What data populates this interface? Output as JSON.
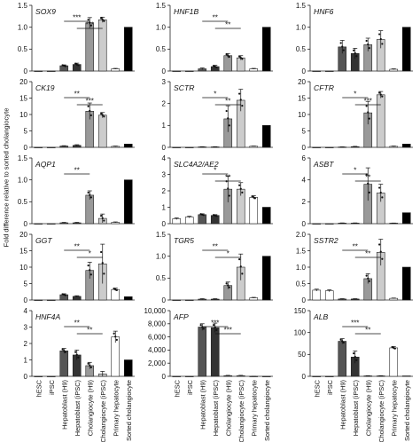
{
  "figure": {
    "y_axis_label": "Fold difference relative to sorted cholangiocyte"
  },
  "chart_data": [
    {
      "type": "bar",
      "title": "SOX9",
      "categories": [
        "hESC",
        "iPSC",
        "Hepatoblast (H9)",
        "Hepatoblast (iPSC)",
        "Cholangiocyte (H9)",
        "Cholangiocyte (iPSC)",
        "Primary hepatocyte",
        "Sorted cholangiocyte"
      ],
      "values": [
        0.0,
        0.0,
        0.12,
        0.15,
        1.1,
        1.17,
        0.05,
        1.0
      ],
      "errors": [
        0,
        0,
        0.02,
        0.03,
        0.12,
        0.06,
        0.01,
        0.0
      ],
      "ylim": [
        0,
        1.5
      ],
      "yticks": [
        0,
        0.5,
        1.0,
        1.5
      ],
      "annotations": [
        {
          "from": 2,
          "to": 4,
          "text": "***"
        },
        {
          "from": 3,
          "to": 5,
          "text": "***"
        }
      ]
    },
    {
      "type": "bar",
      "title": "HNF1B",
      "categories": [
        "hESC",
        "iPSC",
        "Hepatoblast (H9)",
        "Hepatoblast (iPSC)",
        "Cholangiocyte (H9)",
        "Cholangiocyte (iPSC)",
        "Primary hepatocyte",
        "Sorted cholangiocyte"
      ],
      "values": [
        0.0,
        0.0,
        0.05,
        0.1,
        0.35,
        0.3,
        0.05,
        1.0
      ],
      "errors": [
        0,
        0,
        0.02,
        0.03,
        0.05,
        0.05,
        0.01,
        0.0
      ],
      "ylim": [
        0,
        1.5
      ],
      "yticks": [
        0,
        0.5,
        1.0,
        1.5
      ],
      "annotations": [
        {
          "from": 2,
          "to": 4,
          "text": "**"
        },
        {
          "from": 3,
          "to": 5,
          "text": "**"
        }
      ]
    },
    {
      "type": "bar",
      "title": "HNF6",
      "categories": [
        "hESC",
        "iPSC",
        "Hepatoblast (H9)",
        "Hepatoblast (iPSC)",
        "Cholangiocyte (H9)",
        "Cholangiocyte (iPSC)",
        "Primary hepatocyte",
        "Sorted cholangiocyte"
      ],
      "values": [
        0.0,
        0.0,
        0.55,
        0.4,
        0.6,
        0.72,
        0.04,
        1.0
      ],
      "errors": [
        0,
        0,
        0.15,
        0.12,
        0.15,
        0.2,
        0.01,
        0.0
      ],
      "ylim": [
        0,
        1.5
      ],
      "yticks": [
        0,
        0.5,
        1.0,
        1.5
      ],
      "annotations": []
    },
    {
      "type": "bar",
      "title": "CK19",
      "categories": [
        "hESC",
        "iPSC",
        "Hepatoblast (H9)",
        "Hepatoblast (iPSC)",
        "Cholangiocyte (H9)",
        "Cholangiocyte (iPSC)",
        "Primary hepatocyte",
        "Sorted cholangiocyte"
      ],
      "values": [
        0.0,
        0.0,
        0.4,
        0.6,
        11.0,
        9.8,
        0.3,
        1.0
      ],
      "errors": [
        0,
        0,
        0.1,
        0.2,
        2.5,
        0.8,
        0.1,
        0.0
      ],
      "ylim": [
        0,
        20
      ],
      "yticks": [
        0,
        5,
        10,
        15,
        20
      ],
      "annotations": [
        {
          "from": 2,
          "to": 4,
          "text": "**"
        },
        {
          "from": 3,
          "to": 5,
          "text": "***"
        }
      ]
    },
    {
      "type": "bar",
      "title": "SCTR",
      "categories": [
        "hESC",
        "iPSC",
        "Hepatoblast (H9)",
        "Hepatoblast (iPSC)",
        "Cholangiocyte (H9)",
        "Cholangiocyte (iPSC)",
        "Primary hepatocyte",
        "Sorted cholangiocyte"
      ],
      "values": [
        0.0,
        0.0,
        0.02,
        0.02,
        1.3,
        2.15,
        0.05,
        1.0
      ],
      "errors": [
        0,
        0,
        0.01,
        0.01,
        0.6,
        0.5,
        0.01,
        0.0
      ],
      "ylim": [
        0,
        3
      ],
      "yticks": [
        0,
        1,
        2,
        3
      ],
      "annotations": [
        {
          "from": 2,
          "to": 4,
          "text": "*"
        },
        {
          "from": 3,
          "to": 5,
          "text": "**"
        }
      ]
    },
    {
      "type": "bar",
      "title": "CFTR",
      "categories": [
        "hESC",
        "iPSC",
        "Hepatoblast (H9)",
        "Hepatoblast (iPSC)",
        "Cholangiocyte (H9)",
        "Cholangiocyte (iPSC)",
        "Primary hepatocyte",
        "Sorted cholangiocyte"
      ],
      "values": [
        0.0,
        0.0,
        0.1,
        0.2,
        10.5,
        16.0,
        0.3,
        1.0
      ],
      "errors": [
        0,
        0,
        0.05,
        0.1,
        3.5,
        1.0,
        0.1,
        0.0
      ],
      "ylim": [
        0,
        20
      ],
      "yticks": [
        0,
        5,
        10,
        15,
        20
      ],
      "annotations": [
        {
          "from": 2,
          "to": 4,
          "text": "*"
        },
        {
          "from": 3,
          "to": 5,
          "text": "***"
        }
      ]
    },
    {
      "type": "bar",
      "title": "AQP1",
      "categories": [
        "hESC",
        "iPSC",
        "Hepatoblast (H9)",
        "Hepatoblast (iPSC)",
        "Cholangiocyte (H9)",
        "Cholangiocyte (iPSC)",
        "Primary hepatocyte",
        "Sorted cholangiocyte"
      ],
      "values": [
        0.0,
        0.0,
        0.02,
        0.02,
        0.65,
        0.12,
        0.03,
        1.0
      ],
      "errors": [
        0,
        0,
        0.01,
        0.01,
        0.1,
        0.1,
        0.01,
        0.0
      ],
      "ylim": [
        0,
        1.5
      ],
      "yticks": [
        0,
        0.5,
        1.0,
        1.5
      ],
      "annotations": [
        {
          "from": 2,
          "to": 4,
          "text": "**"
        }
      ]
    },
    {
      "type": "bar",
      "title": "SLC4A2/AE2",
      "categories": [
        "hESC",
        "iPSC",
        "Hepatoblast (H9)",
        "Hepatoblast (iPSC)",
        "Cholangiocyte (H9)",
        "Cholangiocyte (iPSC)",
        "Primary hepatocyte",
        "Sorted cholangiocyte"
      ],
      "values": [
        0.3,
        0.4,
        0.55,
        0.5,
        2.1,
        2.1,
        1.6,
        1.0
      ],
      "errors": [
        0.05,
        0.05,
        0.05,
        0.05,
        0.8,
        0.4,
        0.1,
        0.0
      ],
      "ylim": [
        0,
        4
      ],
      "yticks": [
        0,
        1,
        2,
        3,
        4
      ],
      "annotations": [
        {
          "from": 2,
          "to": 4,
          "text": "*"
        },
        {
          "from": 3,
          "to": 5,
          "text": "**"
        }
      ]
    },
    {
      "type": "bar",
      "title": "ASBT",
      "categories": [
        "hESC",
        "iPSC",
        "Hepatoblast (H9)",
        "Hepatoblast (iPSC)",
        "Cholangiocyte (H9)",
        "Cholangiocyte (iPSC)",
        "Primary hepatocyte",
        "Sorted cholangiocyte"
      ],
      "values": [
        0.0,
        0.0,
        0.05,
        0.05,
        3.6,
        2.8,
        0.05,
        1.0
      ],
      "errors": [
        0,
        0,
        0.02,
        0.02,
        1.5,
        0.8,
        0.01,
        0.0
      ],
      "ylim": [
        0,
        6
      ],
      "yticks": [
        0,
        2,
        4,
        6
      ],
      "annotations": [
        {
          "from": 2,
          "to": 4,
          "text": "*"
        },
        {
          "from": 3,
          "to": 5,
          "text": "**"
        }
      ]
    },
    {
      "type": "bar",
      "title": "GGT",
      "categories": [
        "hESC",
        "iPSC",
        "Hepatoblast (H9)",
        "Hepatoblast (iPSC)",
        "Cholangiocyte (H9)",
        "Cholangiocyte (iPSC)",
        "Primary hepatocyte",
        "Sorted cholangiocyte"
      ],
      "values": [
        0.0,
        0.0,
        1.6,
        1.1,
        9.0,
        11.0,
        3.2,
        1.0
      ],
      "errors": [
        0,
        0,
        0.3,
        0.2,
        2.5,
        6.0,
        0.4,
        0.0
      ],
      "ylim": [
        0,
        20
      ],
      "yticks": [
        0,
        5,
        10,
        15,
        20
      ],
      "annotations": [
        {
          "from": 2,
          "to": 4,
          "text": "**"
        },
        {
          "from": 3,
          "to": 5,
          "text": "*"
        }
      ]
    },
    {
      "type": "bar",
      "title": "TGR5",
      "categories": [
        "hESC",
        "iPSC",
        "Hepatoblast (H9)",
        "Hepatoblast (iPSC)",
        "Cholangiocyte (H9)",
        "Cholangiocyte (iPSC)",
        "Primary hepatocyte",
        "Sorted cholangiocyte"
      ],
      "values": [
        0.0,
        0.0,
        0.02,
        0.02,
        0.33,
        0.75,
        0.05,
        1.0
      ],
      "errors": [
        0,
        0,
        0.01,
        0.01,
        0.08,
        0.3,
        0.01,
        0.0
      ],
      "ylim": [
        0,
        1.5
      ],
      "yticks": [
        0,
        0.5,
        1.0,
        1.5
      ],
      "annotations": [
        {
          "from": 2,
          "to": 4,
          "text": "**"
        },
        {
          "from": 3,
          "to": 5,
          "text": "*"
        }
      ]
    },
    {
      "type": "bar",
      "title": "SSTR2",
      "categories": [
        "hESC",
        "iPSC",
        "Hepatoblast (H9)",
        "Hepatoblast (iPSC)",
        "Cholangiocyte (H9)",
        "Cholangiocyte (iPSC)",
        "Primary hepatocyte",
        "Sorted cholangiocyte"
      ],
      "values": [
        0.3,
        0.28,
        0.03,
        0.03,
        0.65,
        1.45,
        0.05,
        1.0
      ],
      "errors": [
        0.03,
        0.03,
        0.01,
        0.01,
        0.15,
        0.4,
        0.01,
        0.0
      ],
      "ylim": [
        0,
        2.0
      ],
      "yticks": [
        0,
        0.5,
        1.0,
        1.5,
        2.0
      ],
      "annotations": [
        {
          "from": 2,
          "to": 4,
          "text": "**"
        },
        {
          "from": 3,
          "to": 5,
          "text": "**"
        }
      ]
    },
    {
      "type": "bar",
      "title": "HNF4A",
      "categories": [
        "hESC",
        "iPSC",
        "Hepatoblast (H9)",
        "Hepatoblast (iPSC)",
        "Cholangiocyte (H9)",
        "Cholangiocyte (iPSC)",
        "Primary hepatocyte",
        "Sorted cholangiocyte"
      ],
      "values": [
        0.0,
        0.0,
        1.55,
        1.3,
        0.65,
        0.15,
        2.4,
        1.0
      ],
      "errors": [
        0,
        0,
        0.15,
        0.3,
        0.2,
        0.15,
        0.35,
        0.0
      ],
      "ylim": [
        0,
        4
      ],
      "yticks": [
        0,
        1,
        2,
        3,
        4
      ],
      "annotations": [
        {
          "from": 2,
          "to": 4,
          "text": "**"
        },
        {
          "from": 3,
          "to": 5,
          "text": "**"
        }
      ]
    },
    {
      "type": "bar",
      "title": "AFP",
      "categories": [
        "hESC",
        "iPSC",
        "Hepatoblast (H9)",
        "Hepatoblast (iPSC)",
        "Cholangiocyte (H9)",
        "Cholangiocyte (iPSC)",
        "Primary hepatocyte",
        "Sorted cholangiocyte"
      ],
      "values": [
        0,
        0,
        7500,
        7400,
        100,
        100,
        10,
        1
      ],
      "errors": [
        0,
        0,
        500,
        700,
        50,
        50,
        5,
        0
      ],
      "ylim": [
        0,
        10000
      ],
      "yticks": [
        0,
        2000,
        4000,
        6000,
        8000,
        10000
      ],
      "ytick_labels": [
        "0",
        "2,000",
        "4,000",
        "6,000",
        "8,000",
        "10,000"
      ],
      "annotations": [
        {
          "from": 2,
          "to": 4,
          "text": "***"
        },
        {
          "from": 3,
          "to": 5,
          "text": "***"
        }
      ]
    },
    {
      "type": "bar",
      "title": "ALB",
      "categories": [
        "hESC",
        "iPSC",
        "Hepatoblast (H9)",
        "Hepatoblast (iPSC)",
        "Cholangiocyte (H9)",
        "Cholangiocyte (iPSC)",
        "Primary hepatocyte",
        "Sorted cholangiocyte"
      ],
      "values": [
        0,
        0,
        80,
        44,
        1,
        1,
        65,
        1
      ],
      "errors": [
        0,
        0,
        6,
        14,
        0.5,
        0.5,
        3,
        0
      ],
      "ylim": [
        0,
        150
      ],
      "yticks": [
        0,
        50,
        100,
        150
      ],
      "annotations": [
        {
          "from": 2,
          "to": 4,
          "text": "***"
        },
        {
          "from": 3,
          "to": 5,
          "text": "**"
        }
      ]
    }
  ],
  "styles": {
    "colors": [
      "#ffffff",
      "#ffffff",
      "#555555",
      "#333333",
      "#999999",
      "#cccccc",
      "#ffffff",
      "#000000"
    ],
    "x_label_panels": [
      12,
      13,
      14
    ]
  }
}
